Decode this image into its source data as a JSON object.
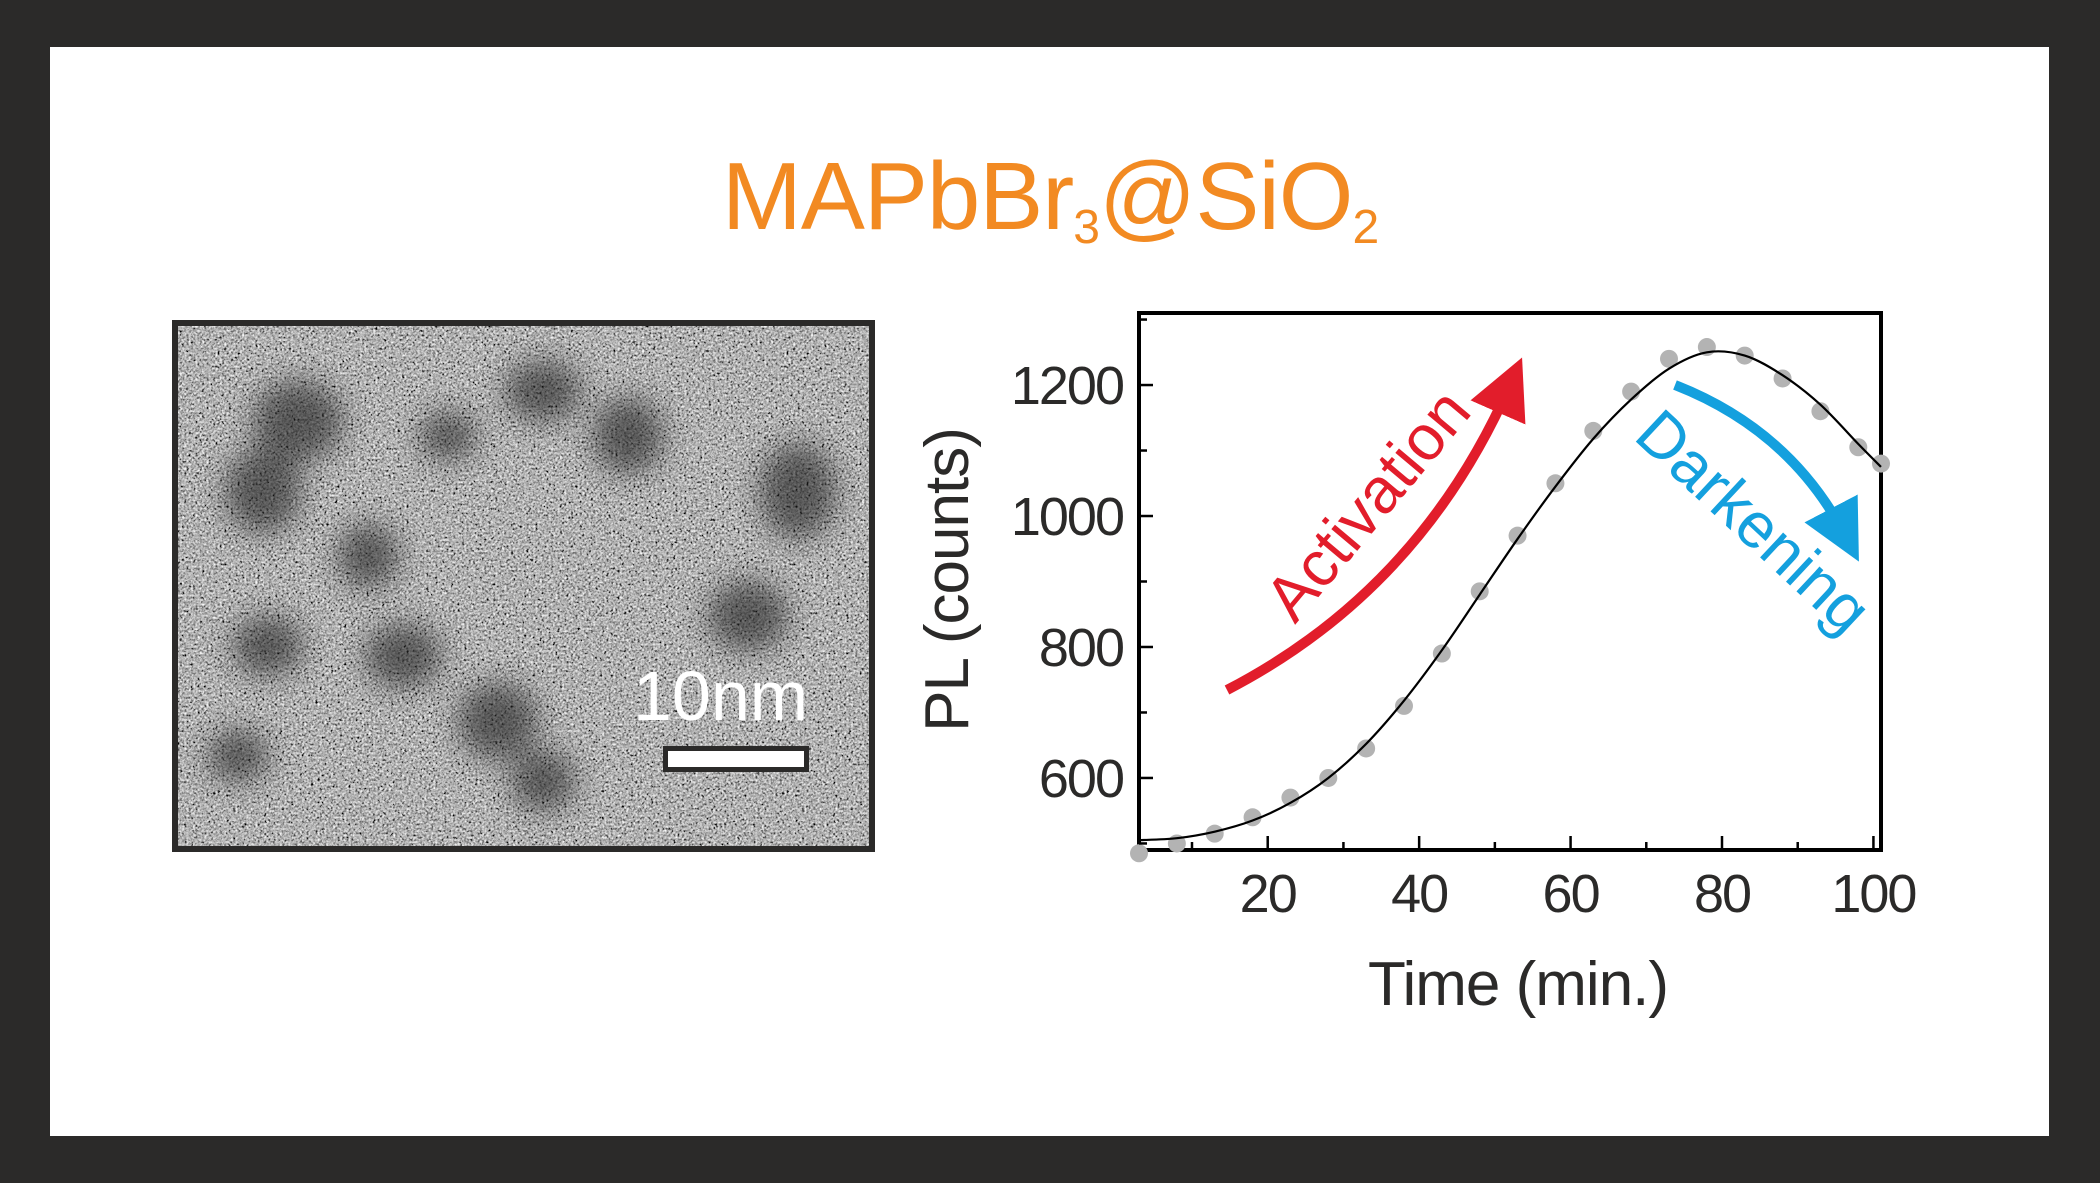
{
  "title": {
    "main": "MAPbBr",
    "sub1": "3",
    "mid": "@SiO",
    "sub2": "2"
  },
  "image": {
    "scale_bar_label": "10nm"
  },
  "colors": {
    "title": "#f28a22",
    "activation": "#e21d2b",
    "darkening": "#14a0de",
    "data_points": "#b3b3b3",
    "fit_line": "#000000",
    "frame": "#2b2a29"
  },
  "chart_data": {
    "type": "scatter",
    "xlabel": "Time (min.)",
    "ylabel": "PL (counts)",
    "xlim": [
      3,
      101
    ],
    "ylim": [
      490,
      1310
    ],
    "x_ticks": [
      20,
      40,
      60,
      80,
      100
    ],
    "y_ticks": [
      600,
      800,
      1000,
      1200
    ],
    "series": [
      {
        "style": "points",
        "x": [
          3,
          8,
          13,
          18,
          23,
          28,
          33,
          38,
          43,
          48,
          53,
          58,
          63,
          68,
          73,
          78,
          83,
          88,
          93,
          98,
          101
        ],
        "y": [
          485,
          500,
          515,
          540,
          570,
          600,
          645,
          710,
          790,
          885,
          970,
          1050,
          1130,
          1190,
          1240,
          1258,
          1245,
          1210,
          1160,
          1105,
          1080
        ]
      },
      {
        "style": "fit-line",
        "x": [
          3,
          8,
          13,
          18,
          23,
          28,
          33,
          38,
          43,
          48,
          53,
          58,
          63,
          68,
          73,
          78,
          83,
          88,
          93,
          98,
          101
        ],
        "y": [
          505,
          508,
          518,
          535,
          562,
          600,
          652,
          718,
          795,
          880,
          965,
          1045,
          1118,
          1178,
          1225,
          1250,
          1245,
          1215,
          1170,
          1110,
          1075
        ]
      }
    ],
    "annotations": [
      {
        "text": "Activation",
        "color": "#e21d2b"
      },
      {
        "text": "Darkening",
        "color": "#14a0de"
      }
    ]
  }
}
